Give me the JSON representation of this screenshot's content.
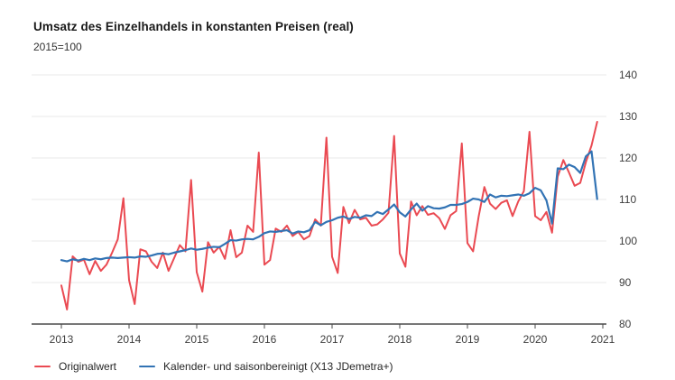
{
  "chart": {
    "title": "Umsatz des Einzelhandels in konstanten Preisen (real)",
    "subtitle": "2015=100",
    "legend": [
      {
        "label": "Originalwert",
        "color": "#ea4a52"
      },
      {
        "label": "Kalender- und saisonbereinigt (X13 JDemetra+)",
        "color": "#3273b4"
      }
    ]
  },
  "chart_data": {
    "type": "line",
    "title": "Umsatz des Einzelhandels in konstanten Preisen (real)",
    "subtitle": "2015=100",
    "x_start": "2013-01",
    "x_frequency": "monthly",
    "x_tick_labels": [
      "2013",
      "2014",
      "2015",
      "2016",
      "2017",
      "2018",
      "2019",
      "2020",
      "2021"
    ],
    "y_ticks": [
      80,
      90,
      100,
      110,
      120,
      130,
      140
    ],
    "ylim": [
      80,
      140
    ],
    "grid": "horizontal-only",
    "legend_position": "bottom-left",
    "colors": {
      "grid": "#e8e8e8",
      "axis": "#4a4a4a",
      "tick_text": "#3d3d3d"
    },
    "series": [
      {
        "name": "Originalwert",
        "color": "#ea4a52",
        "values": [
          89.3,
          83.5,
          96.3,
          95.0,
          95.5,
          92.0,
          95.2,
          92.8,
          94.3,
          97.2,
          100.4,
          110.3,
          90.6,
          84.8,
          98.0,
          97.5,
          95.0,
          93.5,
          97.2,
          92.8,
          95.9,
          99.0,
          97.5,
          114.7,
          92.5,
          87.8,
          99.7,
          97.2,
          98.6,
          95.7,
          102.6,
          96.1,
          97.2,
          103.7,
          102.2,
          121.3,
          94.3,
          95.4,
          103.0,
          102.2,
          103.7,
          101.2,
          102.2,
          100.4,
          101.2,
          105.2,
          103.7,
          124.9,
          96.2,
          92.3,
          108.2,
          104.3,
          107.5,
          105.2,
          105.6,
          103.7,
          104.0,
          105.2,
          106.8,
          125.3,
          97.0,
          93.8,
          109.5,
          106.2,
          108.4,
          106.3,
          106.7,
          105.5,
          102.9,
          106.2,
          107.2,
          123.5,
          99.5,
          97.5,
          106.0,
          113.0,
          109.0,
          107.7,
          109.2,
          109.8,
          106.0,
          109.5,
          112.0,
          126.3,
          106.0,
          105.0,
          107.0,
          102.0,
          115.5,
          119.5,
          116.5,
          113.3,
          114.0,
          119.0,
          123.0,
          128.7
        ]
      },
      {
        "name": "Kalender- und saisonbereinigt (X13 JDemetra+)",
        "color": "#3273b4",
        "values": [
          95.4,
          95.1,
          95.6,
          95.3,
          95.7,
          95.4,
          95.8,
          95.6,
          95.9,
          96.0,
          95.9,
          96.0,
          96.1,
          96.0,
          96.3,
          96.2,
          96.5,
          96.9,
          97.0,
          96.8,
          97.2,
          97.5,
          97.8,
          98.2,
          97.9,
          98.1,
          98.4,
          98.6,
          98.5,
          99.3,
          100.2,
          100.1,
          100.4,
          100.5,
          100.4,
          101.0,
          101.9,
          102.3,
          102.2,
          102.4,
          102.6,
          101.8,
          102.3,
          102.1,
          102.6,
          104.6,
          103.8,
          104.6,
          105.0,
          105.6,
          105.9,
          105.3,
          105.8,
          105.6,
          106.2,
          106.0,
          107.0,
          106.5,
          107.6,
          108.8,
          106.9,
          105.9,
          107.6,
          109.0,
          107.3,
          108.4,
          107.9,
          107.8,
          108.1,
          108.7,
          108.7,
          108.9,
          109.4,
          110.2,
          110.0,
          109.4,
          111.2,
          110.5,
          110.9,
          110.8,
          111.0,
          111.2,
          110.9,
          111.5,
          112.8,
          112.2,
          109.8,
          104.2,
          117.5,
          117.3,
          118.4,
          117.8,
          116.4,
          120.4,
          121.6,
          110.1
        ]
      }
    ]
  }
}
